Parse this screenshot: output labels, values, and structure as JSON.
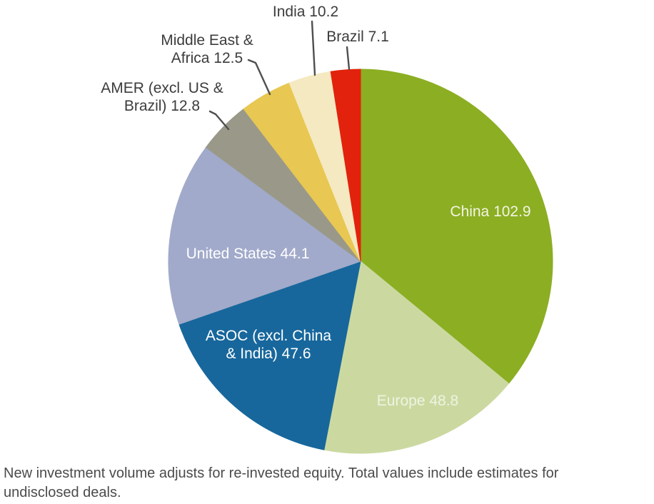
{
  "chart_data": {
    "type": "pie",
    "title": "",
    "legend": "none",
    "direction": "clockwise",
    "start_angle_deg": 0,
    "slices": [
      {
        "name": "China",
        "value": 102.9,
        "color": "#8CAE23",
        "label_lines": [
          "China 102.9"
        ],
        "label_placement": "inside",
        "label_color": "#F2F5E3"
      },
      {
        "name": "Europe",
        "value": 48.8,
        "color": "#CBD9A1",
        "label_lines": [
          "Europe 48.8"
        ],
        "label_placement": "inside",
        "label_color": "#EFF3E1"
      },
      {
        "name": "ASOC (excl. China & India)",
        "value": 47.6,
        "color": "#17679C",
        "label_lines": [
          "ASOC (excl. China",
          "& India) 47.6"
        ],
        "label_placement": "inside",
        "label_color": "#FFFFFF"
      },
      {
        "name": "United States",
        "value": 44.1,
        "color": "#A1AACA",
        "label_lines": [
          "United States 44.1"
        ],
        "label_placement": "inside",
        "label_color": "#FFFFFF"
      },
      {
        "name": "AMER (excl. US & Brazil)",
        "value": 12.8,
        "color": "#9A9989",
        "label_lines": [
          "AMER (excl. US &",
          "Brazil) 12.8"
        ],
        "label_placement": "outside",
        "label_color": "#3C3C3C"
      },
      {
        "name": "Middle East & Africa",
        "value": 12.5,
        "color": "#E8C752",
        "label_lines": [
          "Middle East &",
          "Africa 12.5"
        ],
        "label_placement": "outside",
        "label_color": "#3C3C3C"
      },
      {
        "name": "India",
        "value": 10.2,
        "color": "#F4E9C1",
        "label_lines": [
          "India 10.2"
        ],
        "label_placement": "outside",
        "label_color": "#3C3C3C"
      },
      {
        "name": "Brazil",
        "value": 7.1,
        "color": "#E2220C",
        "label_lines": [
          "Brazil 7.1"
        ],
        "label_placement": "outside",
        "label_color": "#3C3C3C"
      }
    ]
  },
  "footnote": {
    "lines": [
      "New investment volume adjusts for re-invested equity. Total values include estimates for",
      "undisclosed deals."
    ]
  }
}
